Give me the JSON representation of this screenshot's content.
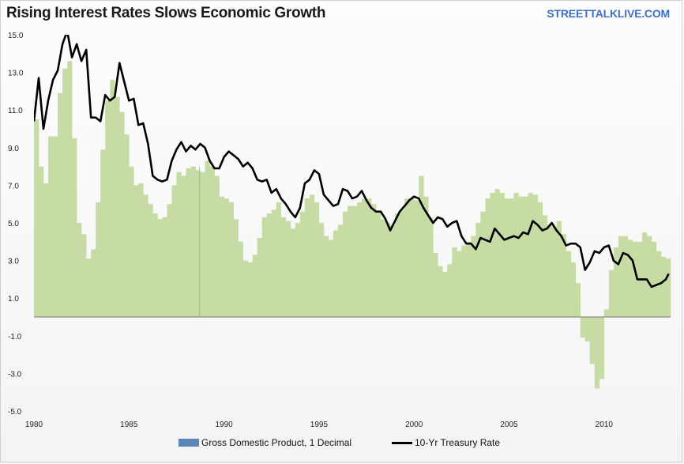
{
  "chart_data": {
    "type": "area",
    "title": "Rising Interest Rates Slows Economic Growth",
    "source_label": "STREETTALKLIVE.COM",
    "ylim": [
      -5.0,
      15.0
    ],
    "y_ticks": [
      "15.0",
      "13.0",
      "11.0",
      "9.0",
      "7.0",
      "5.0",
      "3.0",
      "1.0",
      "-1.0",
      "-3.0",
      "-5.0"
    ],
    "xlim": [
      1980.0,
      2013.5
    ],
    "x_ticks": [
      "1980",
      "1985",
      "1990",
      "1995",
      "2000",
      "2005",
      "2010"
    ],
    "grid": false,
    "legend_position": "bottom",
    "colors": {
      "gdp_fill": "#c6dca4",
      "gdp_legend": "#5b86b8",
      "rate_line": "#000000",
      "brand": "#3f6fc6"
    },
    "series": [
      {
        "name": "Gross Domestic Product, 1 Decimal",
        "kind": "area",
        "x": [
          1980.0,
          1980.25,
          1980.5,
          1980.75,
          1981.0,
          1981.25,
          1981.5,
          1981.75,
          1982.0,
          1982.25,
          1982.5,
          1982.75,
          1983.0,
          1983.25,
          1983.5,
          1983.75,
          1984.0,
          1984.25,
          1984.5,
          1984.75,
          1985.0,
          1985.25,
          1985.5,
          1985.75,
          1986.0,
          1986.25,
          1986.5,
          1986.75,
          1987.0,
          1987.25,
          1987.5,
          1987.75,
          1988.0,
          1988.25,
          1988.5,
          1988.75,
          1989.0,
          1989.25,
          1989.5,
          1989.75,
          1990.0,
          1990.25,
          1990.5,
          1990.75,
          1991.0,
          1991.25,
          1991.5,
          1991.75,
          1992.0,
          1992.25,
          1992.5,
          1992.75,
          1993.0,
          1993.25,
          1993.5,
          1993.75,
          1994.0,
          1994.25,
          1994.5,
          1994.75,
          1995.0,
          1995.25,
          1995.5,
          1995.75,
          1996.0,
          1996.25,
          1996.5,
          1996.75,
          1997.0,
          1997.25,
          1997.5,
          1997.75,
          1998.0,
          1998.25,
          1998.5,
          1998.75,
          1999.0,
          1999.25,
          1999.5,
          1999.75,
          2000.0,
          2000.25,
          2000.5,
          2000.75,
          2001.0,
          2001.25,
          2001.5,
          2001.75,
          2002.0,
          2002.25,
          2002.5,
          2002.75,
          2003.0,
          2003.25,
          2003.5,
          2003.75,
          2004.0,
          2004.25,
          2004.5,
          2004.75,
          2005.0,
          2005.25,
          2005.5,
          2005.75,
          2006.0,
          2006.25,
          2006.5,
          2006.75,
          2007.0,
          2007.25,
          2007.5,
          2007.75,
          2008.0,
          2008.25,
          2008.5,
          2008.75,
          2009.0,
          2009.25,
          2009.5,
          2009.75,
          2010.0,
          2010.25,
          2010.5,
          2010.75,
          2011.0,
          2011.25,
          2011.5,
          2011.75,
          2012.0,
          2012.25,
          2012.5,
          2012.75,
          2013.0,
          2013.25
        ],
        "values": [
          10.5,
          8.0,
          7.1,
          9.6,
          9.6,
          11.9,
          13.2,
          13.6,
          9.5,
          5.0,
          4.4,
          3.1,
          3.6,
          6.1,
          8.9,
          11.5,
          12.6,
          11.7,
          10.9,
          9.7,
          8.0,
          7.0,
          7.1,
          6.5,
          6.0,
          5.5,
          5.2,
          5.3,
          6.0,
          7.0,
          7.7,
          7.5,
          7.9,
          8.0,
          7.8,
          7.7,
          8.3,
          8.0,
          7.5,
          6.4,
          6.3,
          6.1,
          5.2,
          4.0,
          3.0,
          2.9,
          3.3,
          4.2,
          5.3,
          5.5,
          5.7,
          6.1,
          5.3,
          5.1,
          4.7,
          5.0,
          5.6,
          6.3,
          6.5,
          6.1,
          5.0,
          4.3,
          4.1,
          4.6,
          4.9,
          5.6,
          5.9,
          5.9,
          6.1,
          6.3,
          6.3,
          6.0,
          5.6,
          5.2,
          5.0,
          4.9,
          5.5,
          5.7,
          6.3,
          6.3,
          6.2,
          7.5,
          6.4,
          5.3,
          3.4,
          2.7,
          2.4,
          2.8,
          3.7,
          3.5,
          3.8,
          4.0,
          4.3,
          5.0,
          5.6,
          6.3,
          6.6,
          6.8,
          6.6,
          6.3,
          6.3,
          6.6,
          6.4,
          6.4,
          6.6,
          6.5,
          6.1,
          5.4,
          4.9,
          4.8,
          5.1,
          4.4,
          3.5,
          2.9,
          1.8,
          -1.1,
          -1.3,
          -2.5,
          -3.8,
          -3.3,
          0.4,
          2.5,
          3.7,
          4.3,
          4.3,
          4.1,
          4.0,
          4.0,
          4.5,
          4.3,
          4.0,
          3.5,
          3.2,
          3.1
        ]
      },
      {
        "name": "10-Yr Treasury Rate",
        "kind": "line",
        "x": [
          1980.0,
          1980.25,
          1980.5,
          1980.75,
          1981.0,
          1981.25,
          1981.5,
          1981.75,
          1982.0,
          1982.25,
          1982.5,
          1982.75,
          1983.0,
          1983.25,
          1983.5,
          1983.75,
          1984.0,
          1984.25,
          1984.5,
          1984.75,
          1985.0,
          1985.25,
          1985.5,
          1985.75,
          1986.0,
          1986.25,
          1986.5,
          1986.75,
          1987.0,
          1987.25,
          1987.5,
          1987.75,
          1988.0,
          1988.25,
          1988.5,
          1988.75,
          1989.0,
          1989.25,
          1989.5,
          1989.75,
          1990.0,
          1990.25,
          1990.5,
          1990.75,
          1991.0,
          1991.25,
          1991.5,
          1991.75,
          1992.0,
          1992.25,
          1992.5,
          1992.75,
          1993.0,
          1993.25,
          1993.5,
          1993.75,
          1994.0,
          1994.25,
          1994.5,
          1994.75,
          1995.0,
          1995.25,
          1995.5,
          1995.75,
          1996.0,
          1996.25,
          1996.5,
          1996.75,
          1997.0,
          1997.25,
          1997.5,
          1997.75,
          1998.0,
          1998.25,
          1998.5,
          1998.75,
          1999.0,
          1999.25,
          1999.5,
          1999.75,
          2000.0,
          2000.25,
          2000.5,
          2000.75,
          2001.0,
          2001.25,
          2001.5,
          2001.75,
          2002.0,
          2002.25,
          2002.5,
          2002.75,
          2003.0,
          2003.25,
          2003.5,
          2003.75,
          2004.0,
          2004.25,
          2004.5,
          2004.75,
          2005.0,
          2005.25,
          2005.5,
          2005.75,
          2006.0,
          2006.25,
          2006.5,
          2006.75,
          2007.0,
          2007.25,
          2007.5,
          2007.75,
          2008.0,
          2008.25,
          2008.5,
          2008.75,
          2009.0,
          2009.25,
          2009.5,
          2009.75,
          2010.0,
          2010.25,
          2010.5,
          2010.75,
          2011.0,
          2011.25,
          2011.5,
          2011.75,
          2012.0,
          2012.25,
          2012.5,
          2012.75,
          2013.0,
          2013.25,
          2013.4
        ],
        "values": [
          10.4,
          12.7,
          10.0,
          11.5,
          12.6,
          13.1,
          14.5,
          15.2,
          13.8,
          14.5,
          13.6,
          14.2,
          10.6,
          10.6,
          10.4,
          11.8,
          11.5,
          11.7,
          13.5,
          12.5,
          11.5,
          11.6,
          10.2,
          10.3,
          9.2,
          7.5,
          7.3,
          7.2,
          7.3,
          8.3,
          8.9,
          9.3,
          8.8,
          9.1,
          8.9,
          9.2,
          9.0,
          8.3,
          7.9,
          7.9,
          8.5,
          8.8,
          8.6,
          8.4,
          8.0,
          8.2,
          7.9,
          7.3,
          7.2,
          7.3,
          6.6,
          6.8,
          6.3,
          6.0,
          5.6,
          5.3,
          5.8,
          7.1,
          7.3,
          7.8,
          7.6,
          6.5,
          6.2,
          5.9,
          6.0,
          6.8,
          6.7,
          6.3,
          6.4,
          6.7,
          6.2,
          5.8,
          5.6,
          5.6,
          5.2,
          4.6,
          5.1,
          5.6,
          5.9,
          6.2,
          6.4,
          6.3,
          5.8,
          5.4,
          5.0,
          5.3,
          5.2,
          4.8,
          5.0,
          5.1,
          4.3,
          3.9,
          3.9,
          3.6,
          4.2,
          4.1,
          4.0,
          4.7,
          4.4,
          4.1,
          4.2,
          4.3,
          4.2,
          4.5,
          4.4,
          5.1,
          4.9,
          4.6,
          4.7,
          5.0,
          4.6,
          4.3,
          3.8,
          3.9,
          3.9,
          3.7,
          2.5,
          2.9,
          3.5,
          3.4,
          3.7,
          3.8,
          3.0,
          2.8,
          3.4,
          3.3,
          3.0,
          2.0,
          2.0,
          2.0,
          1.6,
          1.7,
          1.8,
          2.0,
          2.3
        ]
      }
    ]
  },
  "legend": {
    "gdp_label": "Gross Domestic Product, 1 Decimal",
    "rate_label": "10-Yr Treasury Rate"
  }
}
